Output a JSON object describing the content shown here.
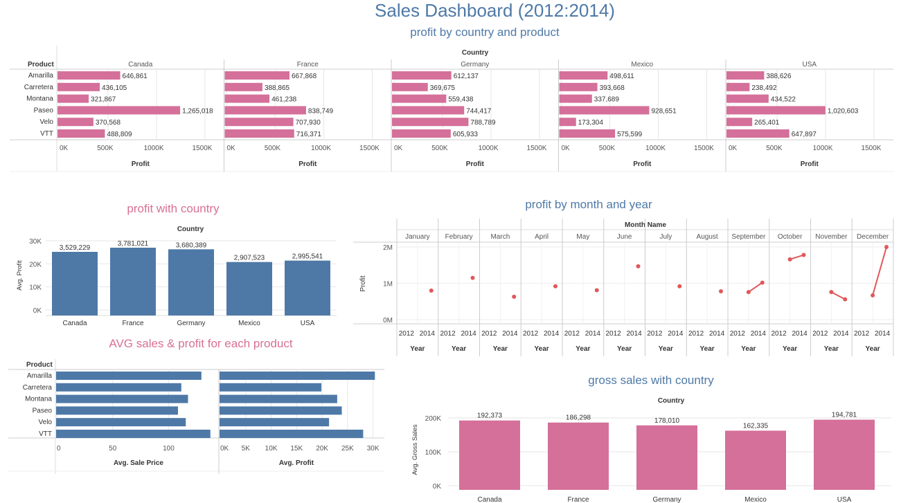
{
  "dashboard": {
    "title": "Sales Dashboard (2012:2014)"
  },
  "colors": {
    "pink": "#d4709a",
    "blue": "#4e79a7",
    "red": "#e15759",
    "grid": "#e6e6e6"
  },
  "panel1": {
    "title": "profit  by country and product",
    "country_header": "Country",
    "product_header": "Product",
    "x_axis_label": "Profit",
    "chart_data": {
      "type": "bar",
      "orientation": "horizontal",
      "title": "profit  by country and product",
      "xlabel": "Profit",
      "ylabel": "Product",
      "categories": [
        "Amarilla",
        "Carretera",
        "Montana",
        "Paseo",
        "Velo",
        "VTT"
      ],
      "xlim": [
        0,
        1500000
      ],
      "xticks": [
        "0K",
        "500K",
        "1000K",
        "1500K"
      ],
      "panels": [
        {
          "name": "Canada",
          "values": [
            646861,
            436105,
            321867,
            1265018,
            370568,
            488809
          ],
          "labels": [
            "646,861",
            "436,105",
            "321,867",
            "1,265,018",
            "370,568",
            "488,809"
          ]
        },
        {
          "name": "France",
          "values": [
            667868,
            388865,
            461238,
            838749,
            707930,
            716371
          ],
          "labels": [
            "667,868",
            "388,865",
            "461,238",
            "838,749",
            "707,930",
            "716,371"
          ]
        },
        {
          "name": "Germany",
          "values": [
            612137,
            369675,
            559438,
            744417,
            788789,
            605933
          ],
          "labels": [
            "612,137",
            "369,675",
            "559,438",
            "744,417",
            "788,789",
            "605,933"
          ]
        },
        {
          "name": "Mexico",
          "values": [
            498611,
            393668,
            337689,
            928651,
            173304,
            575599
          ],
          "labels": [
            "498,611",
            "393,668",
            "337,689",
            "928,651",
            "173,304",
            "575,599"
          ]
        },
        {
          "name": "USA",
          "values": [
            388626,
            238492,
            434522,
            1020603,
            265401,
            647897
          ],
          "labels": [
            "388,626",
            "238,492",
            "434,522",
            "1,020,603",
            "265,401",
            "647,897"
          ]
        }
      ]
    }
  },
  "panel2": {
    "title": "profit with country",
    "header": "Country",
    "chart_data": {
      "type": "bar",
      "title": "profit with country",
      "ylabel": "Avg. Profit",
      "categories": [
        "Canada",
        "France",
        "Germany",
        "Mexico",
        "USA"
      ],
      "values": [
        25200,
        27000,
        26300,
        20800,
        21400
      ],
      "labels": [
        "3,529,229",
        "3,781,021",
        "3,680,389",
        "2,907,523",
        "2,995,541"
      ],
      "ylim": [
        0,
        30000
      ],
      "yticks": [
        "0K",
        "10K",
        "20K",
        "30K"
      ]
    }
  },
  "panel3": {
    "title": "profit by month and year",
    "header": "Month Name",
    "ylabel": "Profit",
    "year_label": "Year",
    "year_ticks": [
      "2012",
      "2014"
    ],
    "chart_data": {
      "type": "line",
      "title": "profit by month and year",
      "ylabel": "Profit",
      "xlabel": "Year",
      "ylim": [
        0,
        2000000
      ],
      "yticks": [
        "0M",
        "1M",
        "2M"
      ],
      "months": [
        {
          "name": "January",
          "points": [
            {
              "x": 2014,
              "y": 800000
            }
          ]
        },
        {
          "name": "February",
          "points": [
            {
              "x": 2014,
              "y": 1150000
            }
          ]
        },
        {
          "name": "March",
          "points": [
            {
              "x": 2014,
              "y": 630000
            }
          ]
        },
        {
          "name": "April",
          "points": [
            {
              "x": 2014,
              "y": 920000
            }
          ]
        },
        {
          "name": "May",
          "points": [
            {
              "x": 2014,
              "y": 810000
            }
          ]
        },
        {
          "name": "June",
          "points": [
            {
              "x": 2014,
              "y": 1470000
            }
          ]
        },
        {
          "name": "July",
          "points": [
            {
              "x": 2014,
              "y": 920000
            }
          ]
        },
        {
          "name": "August",
          "points": [
            {
              "x": 2014,
              "y": 780000
            }
          ]
        },
        {
          "name": "September",
          "points": [
            {
              "x": 2013,
              "y": 760000
            },
            {
              "x": 2014,
              "y": 1020000
            }
          ]
        },
        {
          "name": "October",
          "points": [
            {
              "x": 2013,
              "y": 1660000
            },
            {
              "x": 2014,
              "y": 1780000
            }
          ]
        },
        {
          "name": "November",
          "points": [
            {
              "x": 2013,
              "y": 760000
            },
            {
              "x": 2014,
              "y": 560000
            }
          ]
        },
        {
          "name": "December",
          "points": [
            {
              "x": 2013,
              "y": 670000
            },
            {
              "x": 2014,
              "y": 2000000
            }
          ]
        }
      ]
    }
  },
  "panel4": {
    "title": "AVG sales & profit for each product",
    "product_header": "Product",
    "chart_data": {
      "type": "bar",
      "orientation": "horizontal",
      "title": "AVG sales & profit for each product",
      "categories": [
        "Amarilla",
        "Carretera",
        "Montana",
        "Paseo",
        "Velo",
        "VTT"
      ],
      "panels": [
        {
          "name": "Avg. Sale Price",
          "values": [
            130,
            112,
            118,
            109,
            116,
            138
          ],
          "xlim": [
            0,
            140
          ],
          "xticks": [
            "0",
            "50",
            "100"
          ],
          "xtick_values": [
            0,
            50,
            100
          ]
        },
        {
          "name": "Avg. Profit",
          "values": [
            30500,
            20000,
            23100,
            24000,
            21500,
            28200
          ],
          "xlim": [
            0,
            31000
          ],
          "xticks": [
            "0K",
            "5K",
            "10K",
            "15K",
            "20K",
            "25K",
            "30K"
          ],
          "xtick_values": [
            0,
            5000,
            10000,
            15000,
            20000,
            25000,
            30000
          ]
        }
      ]
    }
  },
  "panel5": {
    "title": "gross sales with country",
    "header": "Country",
    "chart_data": {
      "type": "bar",
      "title": "gross sales with country",
      "ylabel": "Avg. Gross Sales",
      "categories": [
        "Canada",
        "France",
        "Germany",
        "Mexico",
        "USA"
      ],
      "values": [
        192373,
        186298,
        178010,
        162335,
        194781
      ],
      "labels": [
        "192,373",
        "186,298",
        "178,010",
        "162,335",
        "194,781"
      ],
      "ylim": [
        0,
        200000
      ],
      "yticks": [
        "0K",
        "100K",
        "200K"
      ]
    }
  }
}
